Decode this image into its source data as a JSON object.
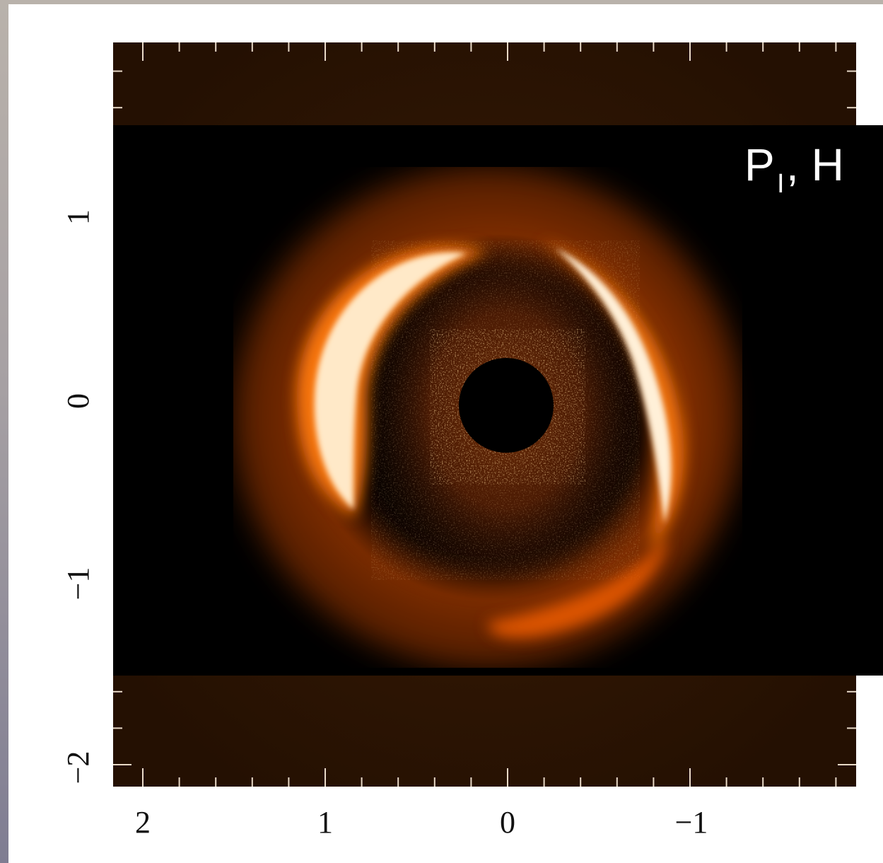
{
  "image": {
    "kind": "astronomical-image",
    "colormap": "heat",
    "colors": {
      "frame_dark": "#2b1403",
      "background": "#000000",
      "ring_glow": "#e35a05",
      "ring_core": "#fff3dc",
      "tick": "#e8d9c8"
    }
  },
  "label": {
    "main": "P",
    "subscript": "I",
    "suffix": ", H"
  },
  "x_ticks": [
    "2",
    "1",
    "0",
    "−1"
  ],
  "y_ticks": [
    "1",
    "0",
    "−1",
    "−2"
  ]
}
